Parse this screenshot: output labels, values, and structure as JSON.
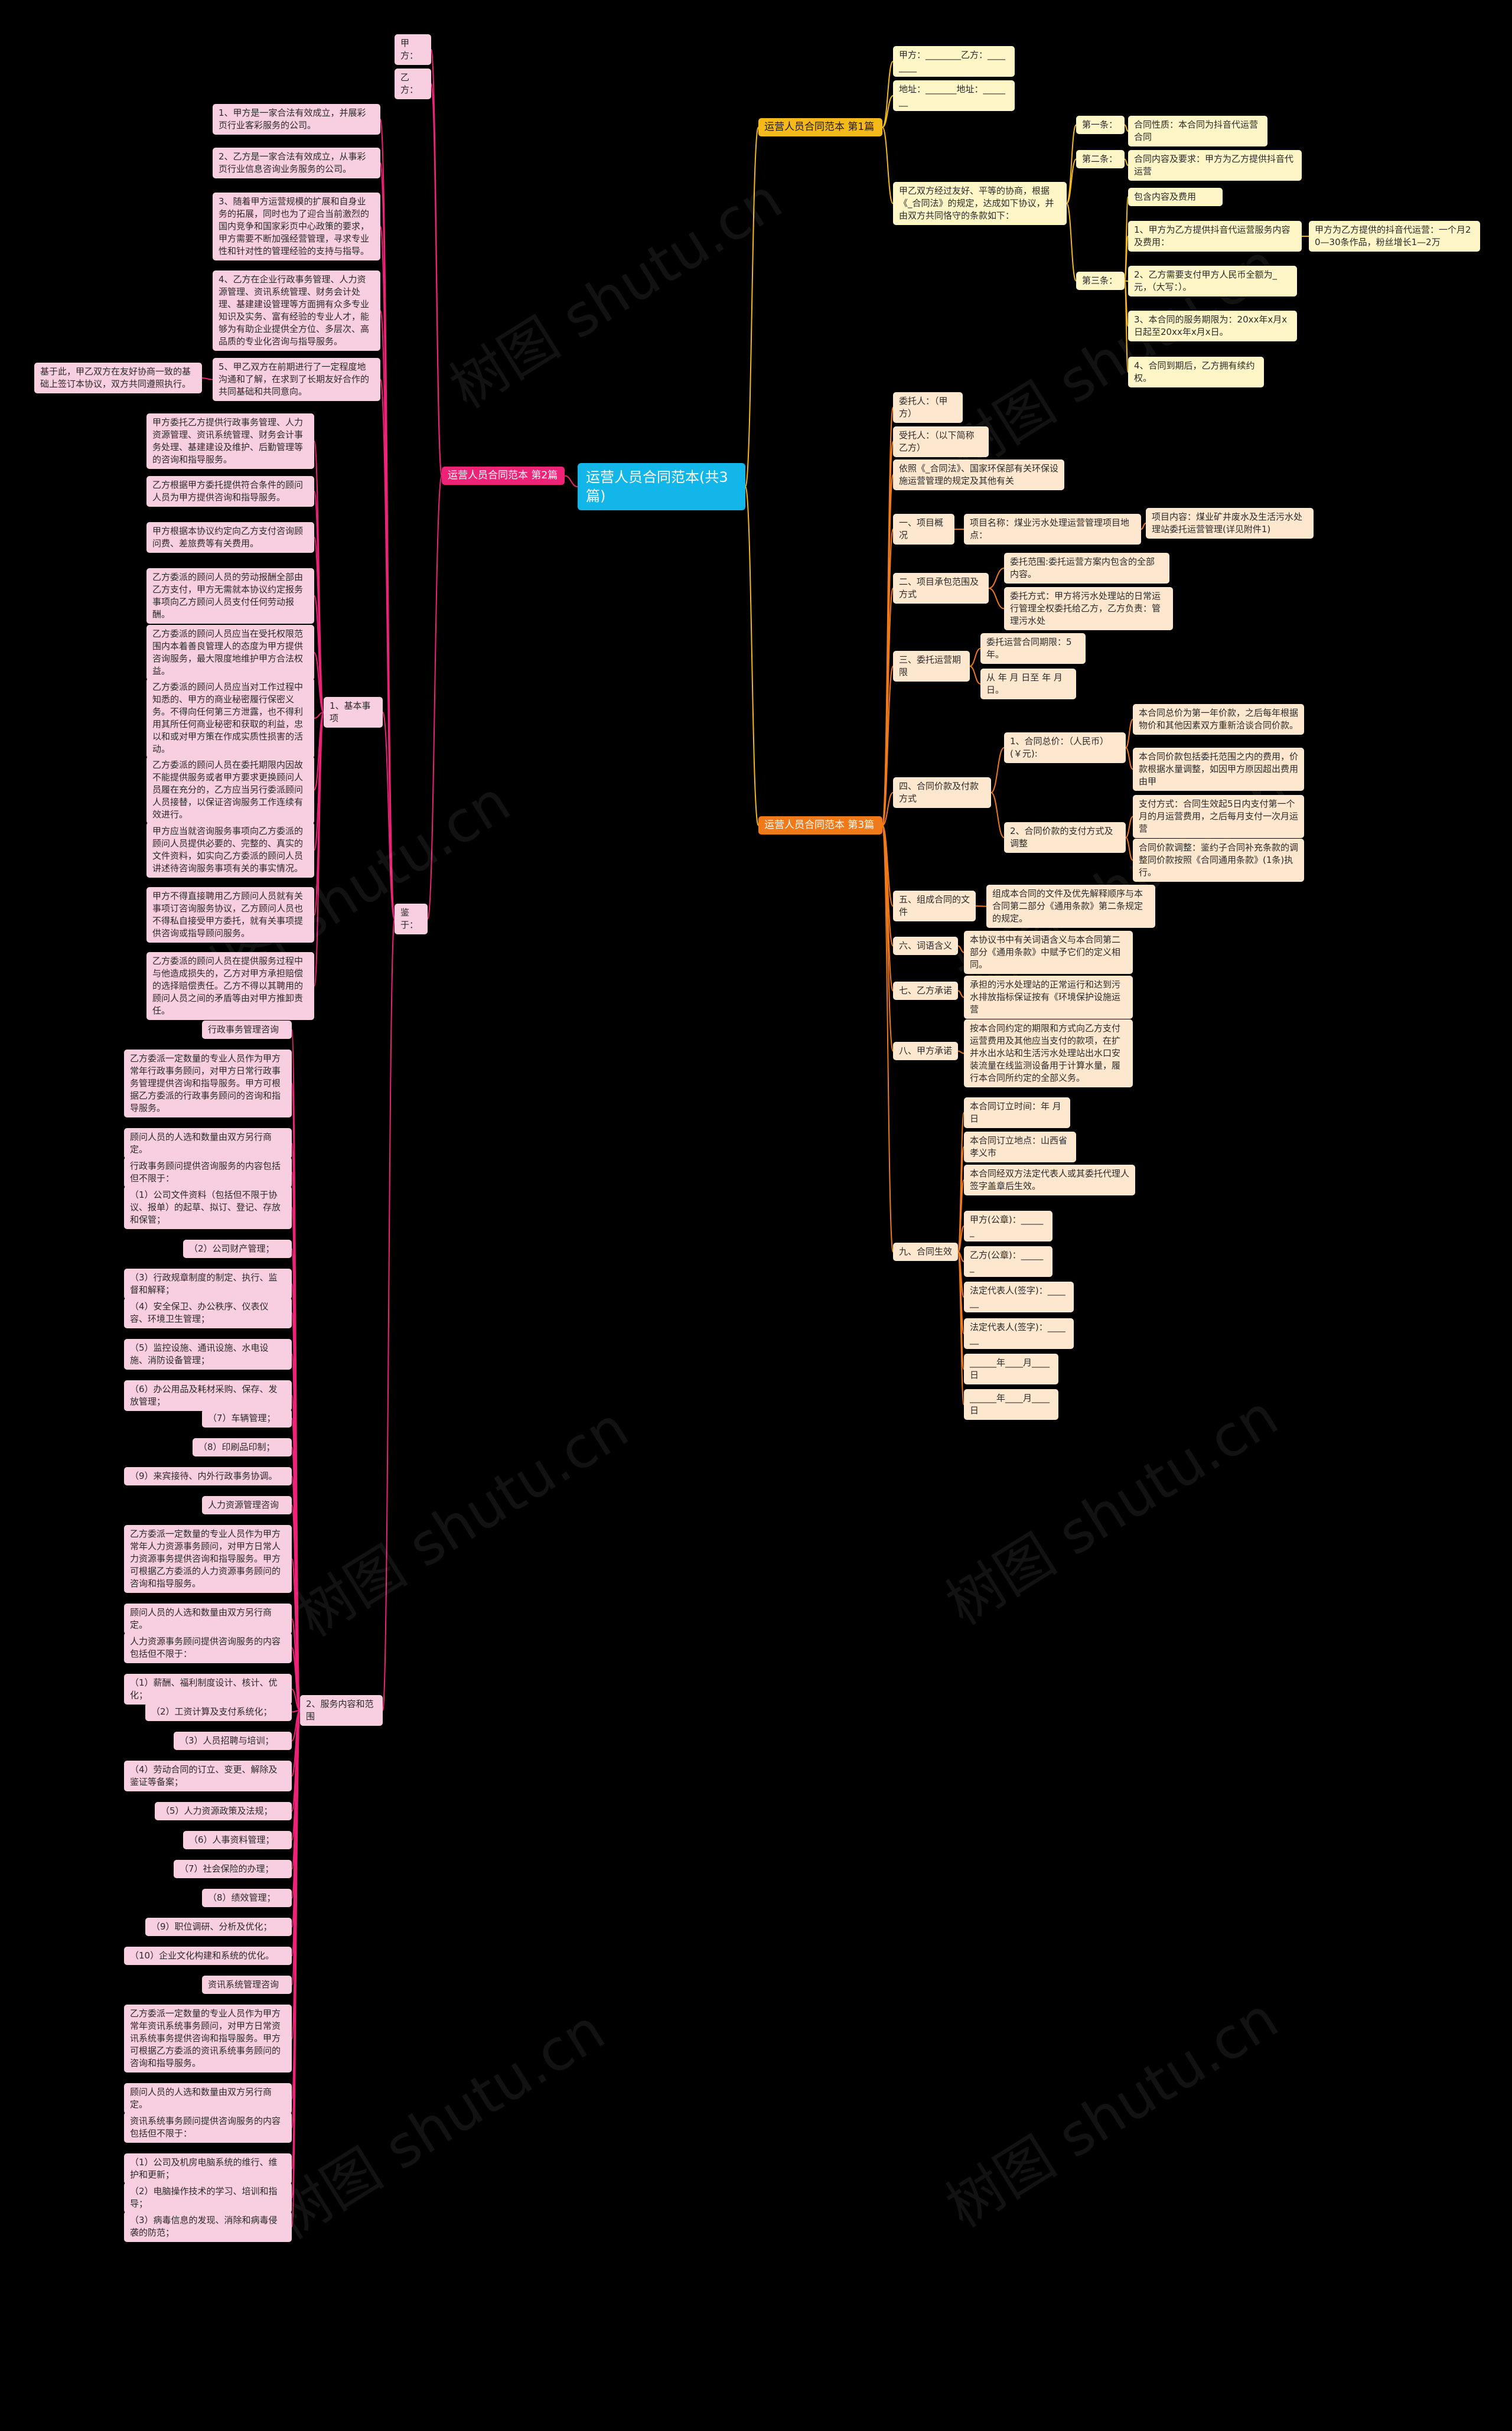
{
  "root": "运营人员合同范本(共3篇)",
  "watermarks": [
    "树图 shutu.cn",
    "树图 shutu.cn",
    "树图 shutu.cn",
    "树图 shutu.cn",
    "树图 shutu.cn",
    "树图 shutu.cn",
    "树图 shutu.cn",
    "树图 shutu.cn"
  ],
  "mid_titles": {
    "p1": "运营人员合同范本 第1篇",
    "p2": "运营人员合同范本 第2篇",
    "p3": "运营人员合同范本 第3篇"
  },
  "part1": {
    "party_a": "甲方：________乙方：________",
    "address": "地址：_______地址：_______",
    "intro": "甲乙双方经过友好、平等的协商，根据《_合同法》的规定，达成如下协议，并由双方共同恪守的条款如下：",
    "a1_label": "第一条：",
    "a1_text": "合同性质：本合同为抖音代运营合同",
    "a2_label": "第二条：",
    "a2_text": "合同内容及要求：甲方为乙方提供抖音代运营",
    "a3_label": "第三条：",
    "a3_items": [
      "包含内容及费用",
      "1、甲方为乙方提供抖音代运营服务内容及费用：",
      "2、乙方需要支付甲方人民币全额为_元，（大写：）。",
      "3、本合同的服务期限为：20xx年x月x日起至20xx年x月x日。",
      "4、合同到期后，乙方拥有续约权。"
    ],
    "a3_fee": "甲方为乙方提供的抖音代运营：一个月20—30条作品，粉丝增长1—2万"
  },
  "part2": {
    "party_a": "甲方：",
    "party_b": "乙方：",
    "clauses": [
      "1、甲方是一家合法有效成立，并展彩页行业客彩服务的公司。",
      "2、乙方是一家合法有效成立，从事彩页行业信息咨询业务服务的公司。",
      "3、随着甲方运营规模的扩展和自身业务的拓展，同时也为了迎合当前激烈的国内竞争和国家彩页中心政策的要求，甲方需要不断加强经营管理，寻求专业性和针对性的管理经验的支持与指导。",
      "4、乙方在企业行政事务管理、人力资源管理、资讯系统管理、财务会计处理、基建建设管理等方面拥有众多专业知识及实务、富有经验的专业人才，能够为有助企业提供全方位、多层次、高品质的专业化咨询与指导服务。",
      "5、甲乙双方在前期进行了一定程度地沟通和了解，在求到了长期友好合作的共同基础和共同意向。"
    ],
    "thus": "基于此，甲乙双方在友好协商一致的基础上签订本协议，双方共同遵照执行。",
    "jianyu": "鉴于：",
    "basic_label": "1、基本事项",
    "basic": [
      "甲方委托乙方提供行政事务管理、人力资源管理、资讯系统管理、财务会计事务处理、基建建设及维护、后勤管理等的咨询和指导服务。",
      "乙方根据甲方委托提供符合条件的顾问人员为甲方提供咨询和指导服务。",
      "甲方根据本协议约定向乙方支付咨询顾问费、差旅费等有关费用。",
      "乙方委派的顾问人员的劳动报酬全部由乙方支付，甲方无需就本协议约定报务事项向乙方顾问人员支付任何劳动报酬。",
      "乙方委派的顾问人员应当在受托权限范围内本着善良管理人的态度为甲方提供咨询服务，最大限度地维护甲方合法权益。",
      "乙方委派的顾问人员应当对工作过程中知悉的、甲方的商业秘密履行保密义务。不得向任何第三方泄露，也不得利用其所任何商业秘密和获取的利益，忠以和或对甲方策在作成实质性损害的活动。",
      "乙方委派的顾问人员在委托期限内因故不能提供服务或者甲方要求更换顾问人员履在充分的，乙方应当另行委派顾问人员接替，以保证咨询服务工作连续有效进行。",
      "甲方应当就咨询服务事项向乙方委派的顾问人员提供必要的、完整的、真实的文件资料，如实向乙方委派的顾问人员讲述待咨询服务事项有关的事实情况。",
      "甲方不得直接聘用乙方顾问人员就有关事项订咨询服务协议，乙方顾问人员也不得私自接受甲方委托，就有关事项提供咨询或指导顾问服务。",
      "乙方委派的顾问人员在提供服务过程中与他造成损失的，乙方对甲方承担赔偿的选择赔偿责任。乙方不得以其聘用的顾问人员之间的矛盾等由对甲方推卸责任。"
    ],
    "svc_label": "2、服务内容和范围",
    "svc": [
      "行政事务管理咨询",
      "乙方委派一定数量的专业人员作为甲方常年行政事务顾问，对甲方日常行政事务管理提供咨询和指导服务。甲方可根据乙方委派的行政事务顾问的咨询和指导服务。",
      "顾问人员的人选和数量由双方另行商定。",
      "行政事务顾问提供咨询服务的内容包括但不限于：",
      "（1）公司文件资料（包括但不限于协议、报单）的起草、拟订、登记、存放和保管；",
      "（2）公司财产管理；",
      "（3）行政规章制度的制定、执行、监督和解释；",
      "（4）安全保卫、办公秩序、仪表仪容、环境卫生管理；",
      "（5）监控设施、通讯设施、水电设施、消防设备管理；",
      "（6）办公用品及耗材采购、保存、发放管理；",
      "（7）车辆管理；",
      "（8）印刷品印制；",
      "（9）来宾接待、内外行政事务协调。",
      "人力资源管理咨询",
      "乙方委派一定数量的专业人员作为甲方常年人力资源事务顾问，对甲方日常人力资源事务提供咨询和指导服务。甲方可根据乙方委派的人力资源事务顾问的咨询和指导服务。",
      "顾问人员的人选和数量由双方另行商定。",
      "人力资源事务顾问提供咨询服务的内容包括但不限于：",
      "（1）薪酬、福利制度设计、核计、优化；",
      "（2）工资计算及支付系统化；",
      "（3）人员招聘与培训；",
      "（4）劳动合同的订立、变更、解除及鉴证等备案；",
      "（5）人力资源政策及法规；",
      "（6）人事资料管理；",
      "（7）社会保险的办理；",
      "（8）绩效管理；",
      "（9）职位调研、分析及优化；",
      "（10）企业文化构建和系统的优化。",
      "资讯系统管理咨询",
      "乙方委派一定数量的专业人员作为甲方常年资讯系统事务顾问，对甲方日常资讯系统事务提供咨询和指导服务。甲方可根据乙方委派的资讯系统事务顾问的咨询和指导服务。",
      "顾问人员的人选和数量由双方另行商定。",
      "资讯系统事务顾问提供咨询服务的内容包括但不限于：",
      "（1）公司及机房电脑系统的维行、维护和更新；",
      "（2）电脑操作技术的学习、培训和指导；",
      "（3）病毒信息的发现、消除和病毒侵袭的防范；"
    ]
  },
  "part3": {
    "client": "委托人：（甲方）",
    "trustee": "受托人：（以下简称乙方）",
    "basis": "依照《_合同法》、国家环保部有关环保设施运营管理的规定及其他有关",
    "s1": "一、项目概况",
    "s1_name": "项目名称：煤业污水处理运营管理项目地点：",
    "s1_content": "项目内容：煤业矿井废水及生活污水处理站委托运营管理(详见附件1)",
    "s2": "二、项目承包范围及方式",
    "s2_items": [
      "委托范围:委托运营方案内包含的全部内容。",
      "委托方式：甲方将污水处理站的日常运行管理全权委托给乙方，乙方负责：管理污水处"
    ],
    "s3": "三、委托运营期限",
    "s3_items": [
      "委托运营合同期限：5年。",
      "从 年 月 日至 年 月 日。"
    ],
    "s4": "四、合同价款及付款方式",
    "s4_1": "1、合同总价：（人民币）(￥元):",
    "s4_1_items": [
      "本合同总价为第一年价款，之后每年根据物价和其他因素双方重新洽谈合同价款。",
      "本合同价款包括委托范围之内的费用，价款根据水量调整，如因甲方原因超出费用由甲"
    ],
    "s4_2": "2、合同价款的支付方式及调整",
    "s4_2_items": [
      "支付方式：合同生效起5日内支付第一个月的月运营费用，之后每月支付一次月运营",
      "合同价款调整：鉴约子合同补充条款的调整同价款按照《合同通用条款》(1条)执行。"
    ],
    "s5": "五、组成合同的文件",
    "s5_text": "组成本合同的文件及优先解释顺序与本合同第二部分《通用条款》第二条规定的规定。",
    "s6": "六、词语含义",
    "s6_text": "本协议书中有关词语含义与本合同第二部分《通用条款》中赋予它们的定义相同。",
    "s7": "七、乙方承诺",
    "s7_text": "承担的污水处理站的正常运行和达到污水排放指标保证按有《环境保护设施运营",
    "s8": "八、甲方承诺",
    "s8_text": "按本合同约定的期限和方式向乙方支付运营费用及其他应当支付的款项，在扩并水出水站和生活污水处理站出水口安装流量在线监测设备用于计算水量，履行本合同所约定的全部义务。",
    "s9": "九、合同生效",
    "s9_items": [
      "本合同订立时间：年 月 日",
      "本合同订立地点：山西省孝义市",
      "本合同经双方法定代表人或其委托代理人签字盖章后生效。",
      "甲方(公章)：______",
      "乙方(公章)：______",
      "法定代表人(签字)：______",
      "法定代表人(签字)：______",
      "______年____月____日",
      "______年____月____日"
    ]
  }
}
